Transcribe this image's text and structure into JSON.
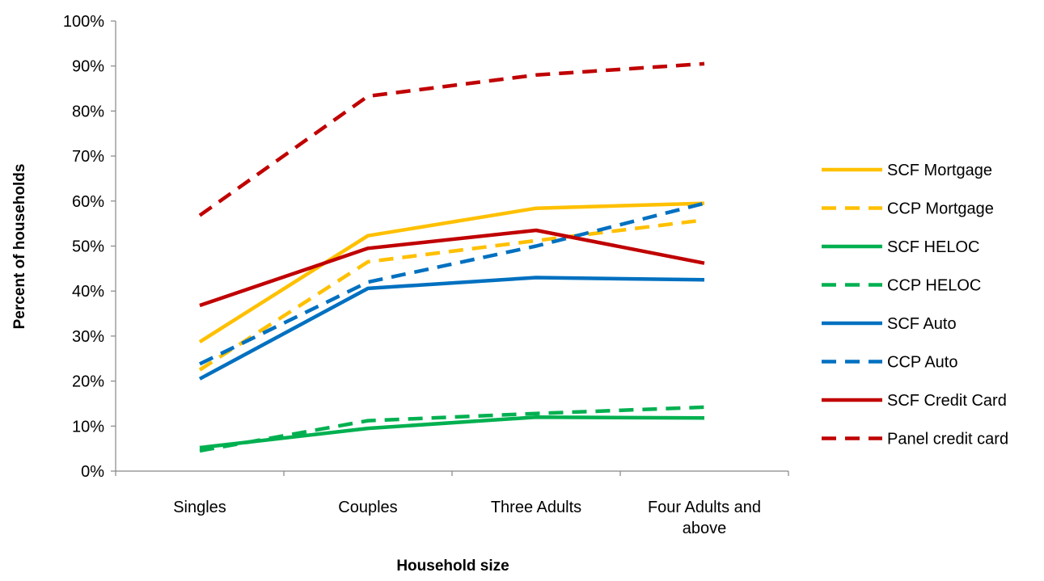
{
  "chart_data": {
    "type": "line",
    "title": "",
    "xlabel": "Household size",
    "ylabel": "Percent of households",
    "categories": [
      "Singles",
      "Couples",
      "Three Adults",
      "Four Adults and above"
    ],
    "ylim": [
      0,
      100
    ],
    "yticks": [
      "0%",
      "10%",
      "20%",
      "30%",
      "40%",
      "50%",
      "60%",
      "70%",
      "80%",
      "90%",
      "100%"
    ],
    "grid": false,
    "legend_position": "right",
    "series": [
      {
        "name": "SCF Mortgage",
        "color": "#FFC000",
        "dash": false,
        "values": [
          28.7,
          52.3,
          58.4,
          59.5
        ]
      },
      {
        "name": "CCP Mortgage",
        "color": "#FFC000",
        "dash": true,
        "values": [
          22.5,
          46.5,
          51.2,
          55.8
        ]
      },
      {
        "name": "SCF HELOC",
        "color": "#00B050",
        "dash": false,
        "values": [
          5.2,
          9.5,
          12.0,
          11.8
        ]
      },
      {
        "name": "CCP HELOC",
        "color": "#00B050",
        "dash": true,
        "values": [
          4.5,
          11.2,
          12.8,
          14.2
        ]
      },
      {
        "name": "SCF Auto",
        "color": "#0070C0",
        "dash": false,
        "values": [
          20.5,
          40.6,
          43.0,
          42.5
        ]
      },
      {
        "name": "CCP Auto",
        "color": "#0070C0",
        "dash": true,
        "values": [
          23.8,
          42.0,
          50.0,
          59.5
        ]
      },
      {
        "name": "SCF Credit Card",
        "color": "#C00000",
        "dash": false,
        "values": [
          36.8,
          49.5,
          53.5,
          46.2
        ]
      },
      {
        "name": "Panel credit card",
        "color": "#C00000",
        "dash": true,
        "values": [
          56.8,
          83.3,
          88.0,
          90.5
        ]
      }
    ]
  }
}
